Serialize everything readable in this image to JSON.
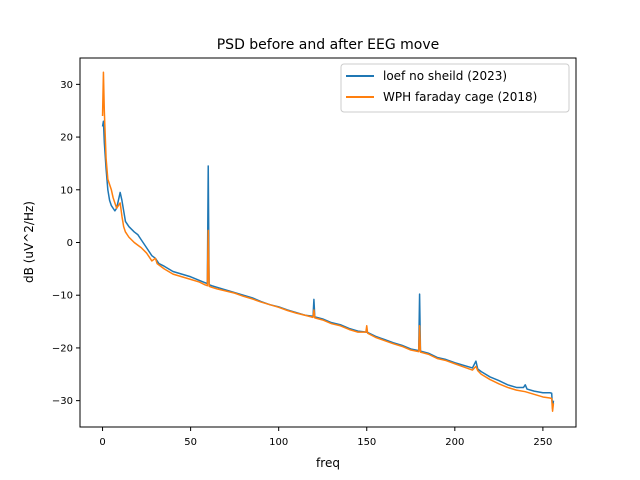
{
  "chart_data": {
    "type": "line",
    "title": "PSD before and after EEG move",
    "xlabel": "freq",
    "ylabel": "dB (uV^2/Hz)",
    "xlim": [
      -12.8,
      268.8
    ],
    "ylim": [
      -35,
      35
    ],
    "xticks": [
      0,
      50,
      100,
      150,
      200,
      250
    ],
    "yticks": [
      30,
      20,
      10,
      0,
      -10,
      -20,
      -30
    ],
    "grid": false,
    "legend_position": "top-right",
    "series": [
      {
        "name": "loef no sheild (2023)",
        "color": "#1f77b4",
        "points": [
          [
            0,
            22
          ],
          [
            0.5,
            23
          ],
          [
            1,
            19
          ],
          [
            2,
            14
          ],
          [
            3,
            10
          ],
          [
            4,
            8
          ],
          [
            5,
            7
          ],
          [
            6,
            6.5
          ],
          [
            7,
            6
          ],
          [
            8,
            6.5
          ],
          [
            9,
            8
          ],
          [
            10,
            9.5
          ],
          [
            11,
            8
          ],
          [
            12,
            6
          ],
          [
            13,
            4
          ],
          [
            15,
            3
          ],
          [
            18,
            2
          ],
          [
            20,
            1.5
          ],
          [
            22,
            0.5
          ],
          [
            25,
            -1
          ],
          [
            28,
            -2.5
          ],
          [
            30,
            -3
          ],
          [
            32,
            -4
          ],
          [
            35,
            -4.5
          ],
          [
            40,
            -5.5
          ],
          [
            45,
            -6
          ],
          [
            50,
            -6.5
          ],
          [
            55,
            -7.2
          ],
          [
            58,
            -7.6
          ],
          [
            59.5,
            -7.8
          ],
          [
            60,
            14.5
          ],
          [
            60.5,
            -8
          ],
          [
            62,
            -8.2
          ],
          [
            65,
            -8.5
          ],
          [
            70,
            -9
          ],
          [
            75,
            -9.5
          ],
          [
            80,
            -10
          ],
          [
            85,
            -10.5
          ],
          [
            90,
            -11.2
          ],
          [
            95,
            -11.8
          ],
          [
            100,
            -12.2
          ],
          [
            105,
            -12.8
          ],
          [
            110,
            -13.3
          ],
          [
            115,
            -13.8
          ],
          [
            119.5,
            -14
          ],
          [
            120,
            -10.8
          ],
          [
            120.5,
            -14.1
          ],
          [
            125,
            -14.5
          ],
          [
            130,
            -15.2
          ],
          [
            135,
            -15.6
          ],
          [
            140,
            -16.3
          ],
          [
            145,
            -16.8
          ],
          [
            150,
            -17
          ],
          [
            155,
            -17.8
          ],
          [
            160,
            -18.4
          ],
          [
            165,
            -19
          ],
          [
            170,
            -19.5
          ],
          [
            175,
            -20.2
          ],
          [
            179.5,
            -20.5
          ],
          [
            180,
            -9.8
          ],
          [
            180.5,
            -20.6
          ],
          [
            185,
            -21
          ],
          [
            190,
            -21.8
          ],
          [
            195,
            -22.2
          ],
          [
            200,
            -22.8
          ],
          [
            205,
            -23.3
          ],
          [
            210,
            -23.8
          ],
          [
            212,
            -22.5
          ],
          [
            213,
            -24
          ],
          [
            215,
            -24.5
          ],
          [
            220,
            -25.5
          ],
          [
            225,
            -26.2
          ],
          [
            230,
            -27
          ],
          [
            235,
            -27.5
          ],
          [
            239,
            -27.5
          ],
          [
            240,
            -27
          ],
          [
            241,
            -27.8
          ],
          [
            245,
            -28.2
          ],
          [
            250,
            -28.5
          ],
          [
            254,
            -28.5
          ],
          [
            255,
            -28.6
          ],
          [
            255.5,
            -31.5
          ],
          [
            256,
            -30
          ]
        ]
      },
      {
        "name": "WPH faraday cage (2018)",
        "color": "#ff7f0e",
        "points": [
          [
            0,
            24
          ],
          [
            0.5,
            32.3
          ],
          [
            1,
            25
          ],
          [
            2,
            16
          ],
          [
            3,
            12
          ],
          [
            4,
            11
          ],
          [
            5,
            10
          ],
          [
            6,
            8.5
          ],
          [
            7,
            7.5
          ],
          [
            8,
            6.5
          ],
          [
            9,
            7
          ],
          [
            10,
            7.5
          ],
          [
            11,
            5
          ],
          [
            12,
            3
          ],
          [
            13,
            2
          ],
          [
            15,
            1
          ],
          [
            18,
            0
          ],
          [
            20,
            -0.5
          ],
          [
            22,
            -1
          ],
          [
            25,
            -2
          ],
          [
            28,
            -3.5
          ],
          [
            30,
            -3
          ],
          [
            31,
            -4
          ],
          [
            35,
            -5
          ],
          [
            40,
            -6
          ],
          [
            45,
            -6.5
          ],
          [
            50,
            -7
          ],
          [
            55,
            -7.5
          ],
          [
            58,
            -8
          ],
          [
            59.5,
            -8.2
          ],
          [
            60,
            2.3
          ],
          [
            60.5,
            -8.3
          ],
          [
            62,
            -8.5
          ],
          [
            65,
            -8.8
          ],
          [
            70,
            -9.2
          ],
          [
            75,
            -9.6
          ],
          [
            80,
            -10.2
          ],
          [
            85,
            -10.7
          ],
          [
            90,
            -11.3
          ],
          [
            95,
            -11.8
          ],
          [
            100,
            -12.3
          ],
          [
            105,
            -12.9
          ],
          [
            110,
            -13.4
          ],
          [
            115,
            -13.8
          ],
          [
            119.5,
            -14.2
          ],
          [
            120,
            -12.8
          ],
          [
            120.5,
            -14.3
          ],
          [
            125,
            -14.7
          ],
          [
            130,
            -15.4
          ],
          [
            135,
            -15.8
          ],
          [
            140,
            -16.5
          ],
          [
            145,
            -17
          ],
          [
            149.5,
            -17
          ],
          [
            150,
            -15.8
          ],
          [
            150.5,
            -17.2
          ],
          [
            155,
            -18
          ],
          [
            160,
            -18.6
          ],
          [
            165,
            -19.2
          ],
          [
            170,
            -19.7
          ],
          [
            175,
            -20.4
          ],
          [
            179.5,
            -20.7
          ],
          [
            180,
            -15.8
          ],
          [
            180.5,
            -20.8
          ],
          [
            185,
            -21.2
          ],
          [
            190,
            -22
          ],
          [
            195,
            -22.4
          ],
          [
            200,
            -23
          ],
          [
            205,
            -23.6
          ],
          [
            210,
            -24.2
          ],
          [
            212,
            -23.5
          ],
          [
            213,
            -24.3
          ],
          [
            215,
            -25
          ],
          [
            220,
            -26
          ],
          [
            225,
            -26.8
          ],
          [
            230,
            -27.5
          ],
          [
            235,
            -28
          ],
          [
            240,
            -28.3
          ],
          [
            245,
            -28.8
          ],
          [
            250,
            -29.3
          ],
          [
            254,
            -29.5
          ],
          [
            255,
            -29.6
          ],
          [
            255.5,
            -32
          ],
          [
            256,
            -30.5
          ]
        ]
      }
    ]
  }
}
